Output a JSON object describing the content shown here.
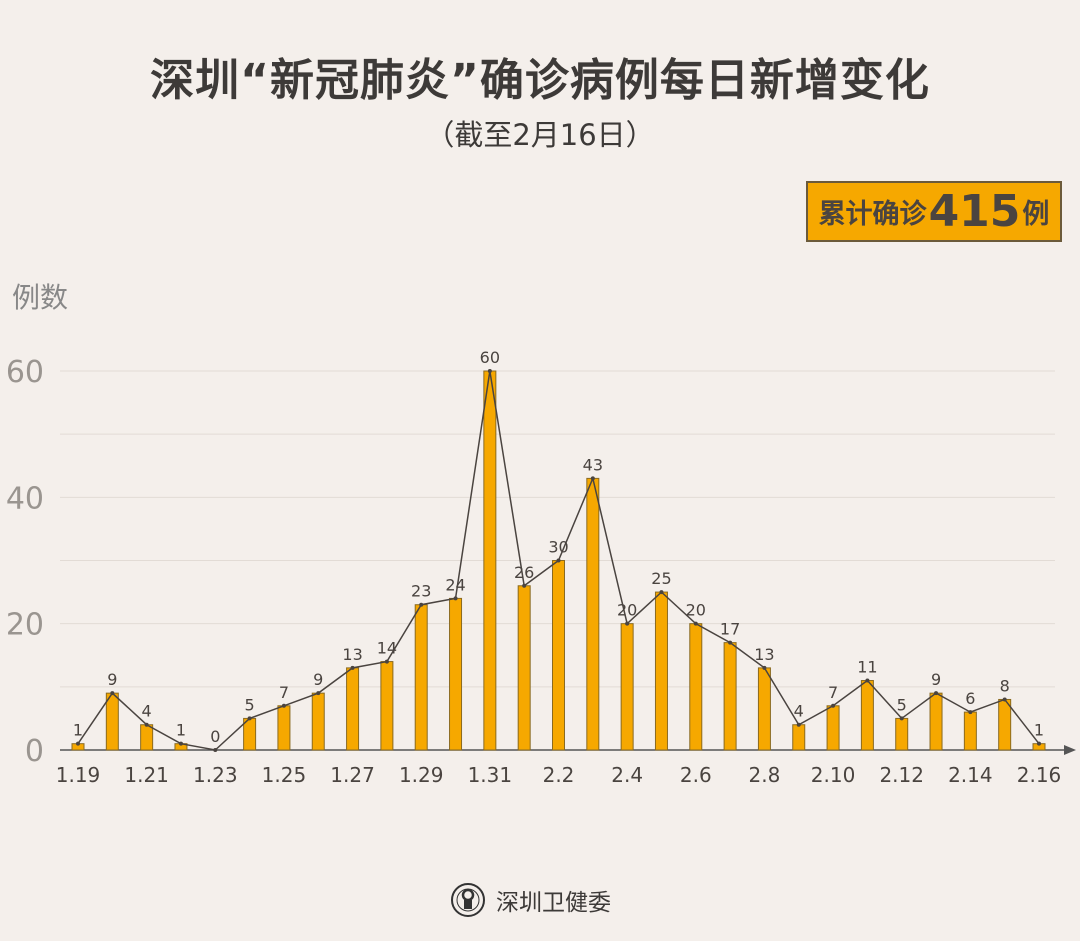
{
  "title": "深圳“新冠肺炎”确诊病例每日新增变化",
  "subtitle": "（截至2月16日）",
  "total": {
    "prefix": "累计确诊",
    "value": "415",
    "suffix": "例"
  },
  "footer": {
    "org": "深圳卫健委",
    "logo": "shenzhen-health-commission-seal"
  },
  "colors": {
    "bar": "#f6a800",
    "line": "#4a4440",
    "background": "#f4efeb"
  },
  "chart_data": {
    "type": "bar",
    "ylabel": "例数",
    "ylim": [
      0,
      60
    ],
    "yticks": [
      0,
      20,
      40,
      60
    ],
    "grid": true,
    "categories": [
      "1.19",
      "1.20",
      "1.21",
      "1.22",
      "1.23",
      "1.24",
      "1.25",
      "1.26",
      "1.27",
      "1.28",
      "1.29",
      "1.30",
      "1.31",
      "2.1",
      "2.2",
      "2.3",
      "2.4",
      "2.5",
      "2.6",
      "2.7",
      "2.8",
      "2.9",
      "2.10",
      "2.11",
      "2.12",
      "2.13",
      "2.14",
      "2.15",
      "2.16"
    ],
    "xtick_labels": [
      "1.19",
      "1.21",
      "1.23",
      "1.25",
      "1.27",
      "1.29",
      "1.31",
      "2.2",
      "2.4",
      "2.6",
      "2.8",
      "2.10",
      "2.12",
      "2.14",
      "2.16"
    ],
    "values": [
      1,
      9,
      4,
      1,
      0,
      5,
      7,
      9,
      13,
      14,
      23,
      24,
      60,
      26,
      30,
      43,
      20,
      25,
      20,
      17,
      13,
      4,
      7,
      11,
      5,
      9,
      6,
      8,
      1
    ],
    "overlay_line": true
  }
}
